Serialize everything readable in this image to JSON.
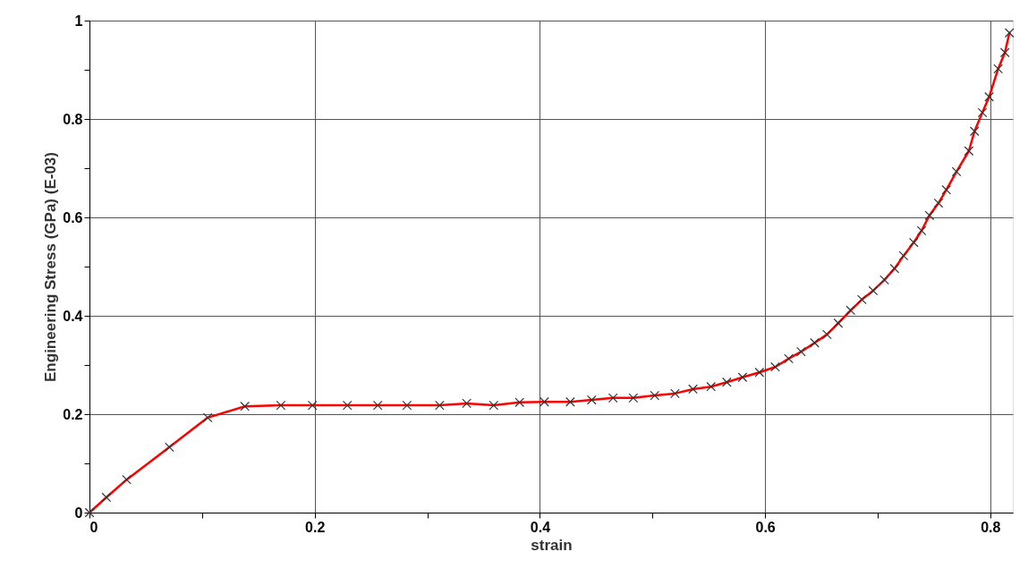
{
  "chart_data": {
    "type": "line",
    "xlabel": "strain",
    "ylabel": "Engineering Stress (GPa) (E-03)",
    "x": [
      0,
      0.015,
      0.033,
      0.071,
      0.105,
      0.138,
      0.17,
      0.198,
      0.229,
      0.256,
      0.282,
      0.311,
      0.335,
      0.359,
      0.382,
      0.404,
      0.427,
      0.446,
      0.465,
      0.483,
      0.502,
      0.52,
      0.536,
      0.552,
      0.566,
      0.58,
      0.595,
      0.609,
      0.621,
      0.632,
      0.644,
      0.655,
      0.665,
      0.676,
      0.686,
      0.696,
      0.706,
      0.715,
      0.723,
      0.732,
      0.739,
      0.746,
      0.754,
      0.761,
      0.77,
      0.781,
      0.786,
      0.793,
      0.799,
      0.807,
      0.813,
      0.817
    ],
    "series": [
      {
        "color": "#ff0000",
        "values": [
          0,
          0.031,
          0.067,
          0.133,
          0.193,
          0.216,
          0.218,
          0.218,
          0.218,
          0.218,
          0.218,
          0.218,
          0.222,
          0.218,
          0.224,
          0.225,
          0.225,
          0.229,
          0.233,
          0.233,
          0.238,
          0.242,
          0.251,
          0.256,
          0.265,
          0.275,
          0.285,
          0.296,
          0.313,
          0.327,
          0.345,
          0.362,
          0.385,
          0.411,
          0.433,
          0.451,
          0.473,
          0.496,
          0.522,
          0.549,
          0.573,
          0.604,
          0.629,
          0.656,
          0.693,
          0.735,
          0.775,
          0.813,
          0.845,
          0.902,
          0.935,
          0.975
        ]
      }
    ],
    "xlim": [
      0,
      0.82
    ],
    "ylim": [
      0,
      1
    ],
    "xticks": [
      0,
      {
        "value": 0.1,
        "label": null
      },
      0.2,
      {
        "value": 0.3,
        "label": null
      },
      0.4,
      {
        "value": 0.5,
        "label": null
      },
      0.6,
      {
        "value": 0.7,
        "label": null
      },
      0.8
    ],
    "yticks": [
      0,
      {
        "value": 0.1,
        "label": null
      },
      0.2,
      {
        "value": 0.3,
        "label": null
      },
      0.4,
      {
        "value": 0.5,
        "label": null
      },
      0.6,
      {
        "value": 0.7,
        "label": null
      },
      0.8,
      {
        "value": 0.9,
        "label": null
      },
      1
    ],
    "grid": true,
    "marker": "cross",
    "line_style": "solid"
  }
}
